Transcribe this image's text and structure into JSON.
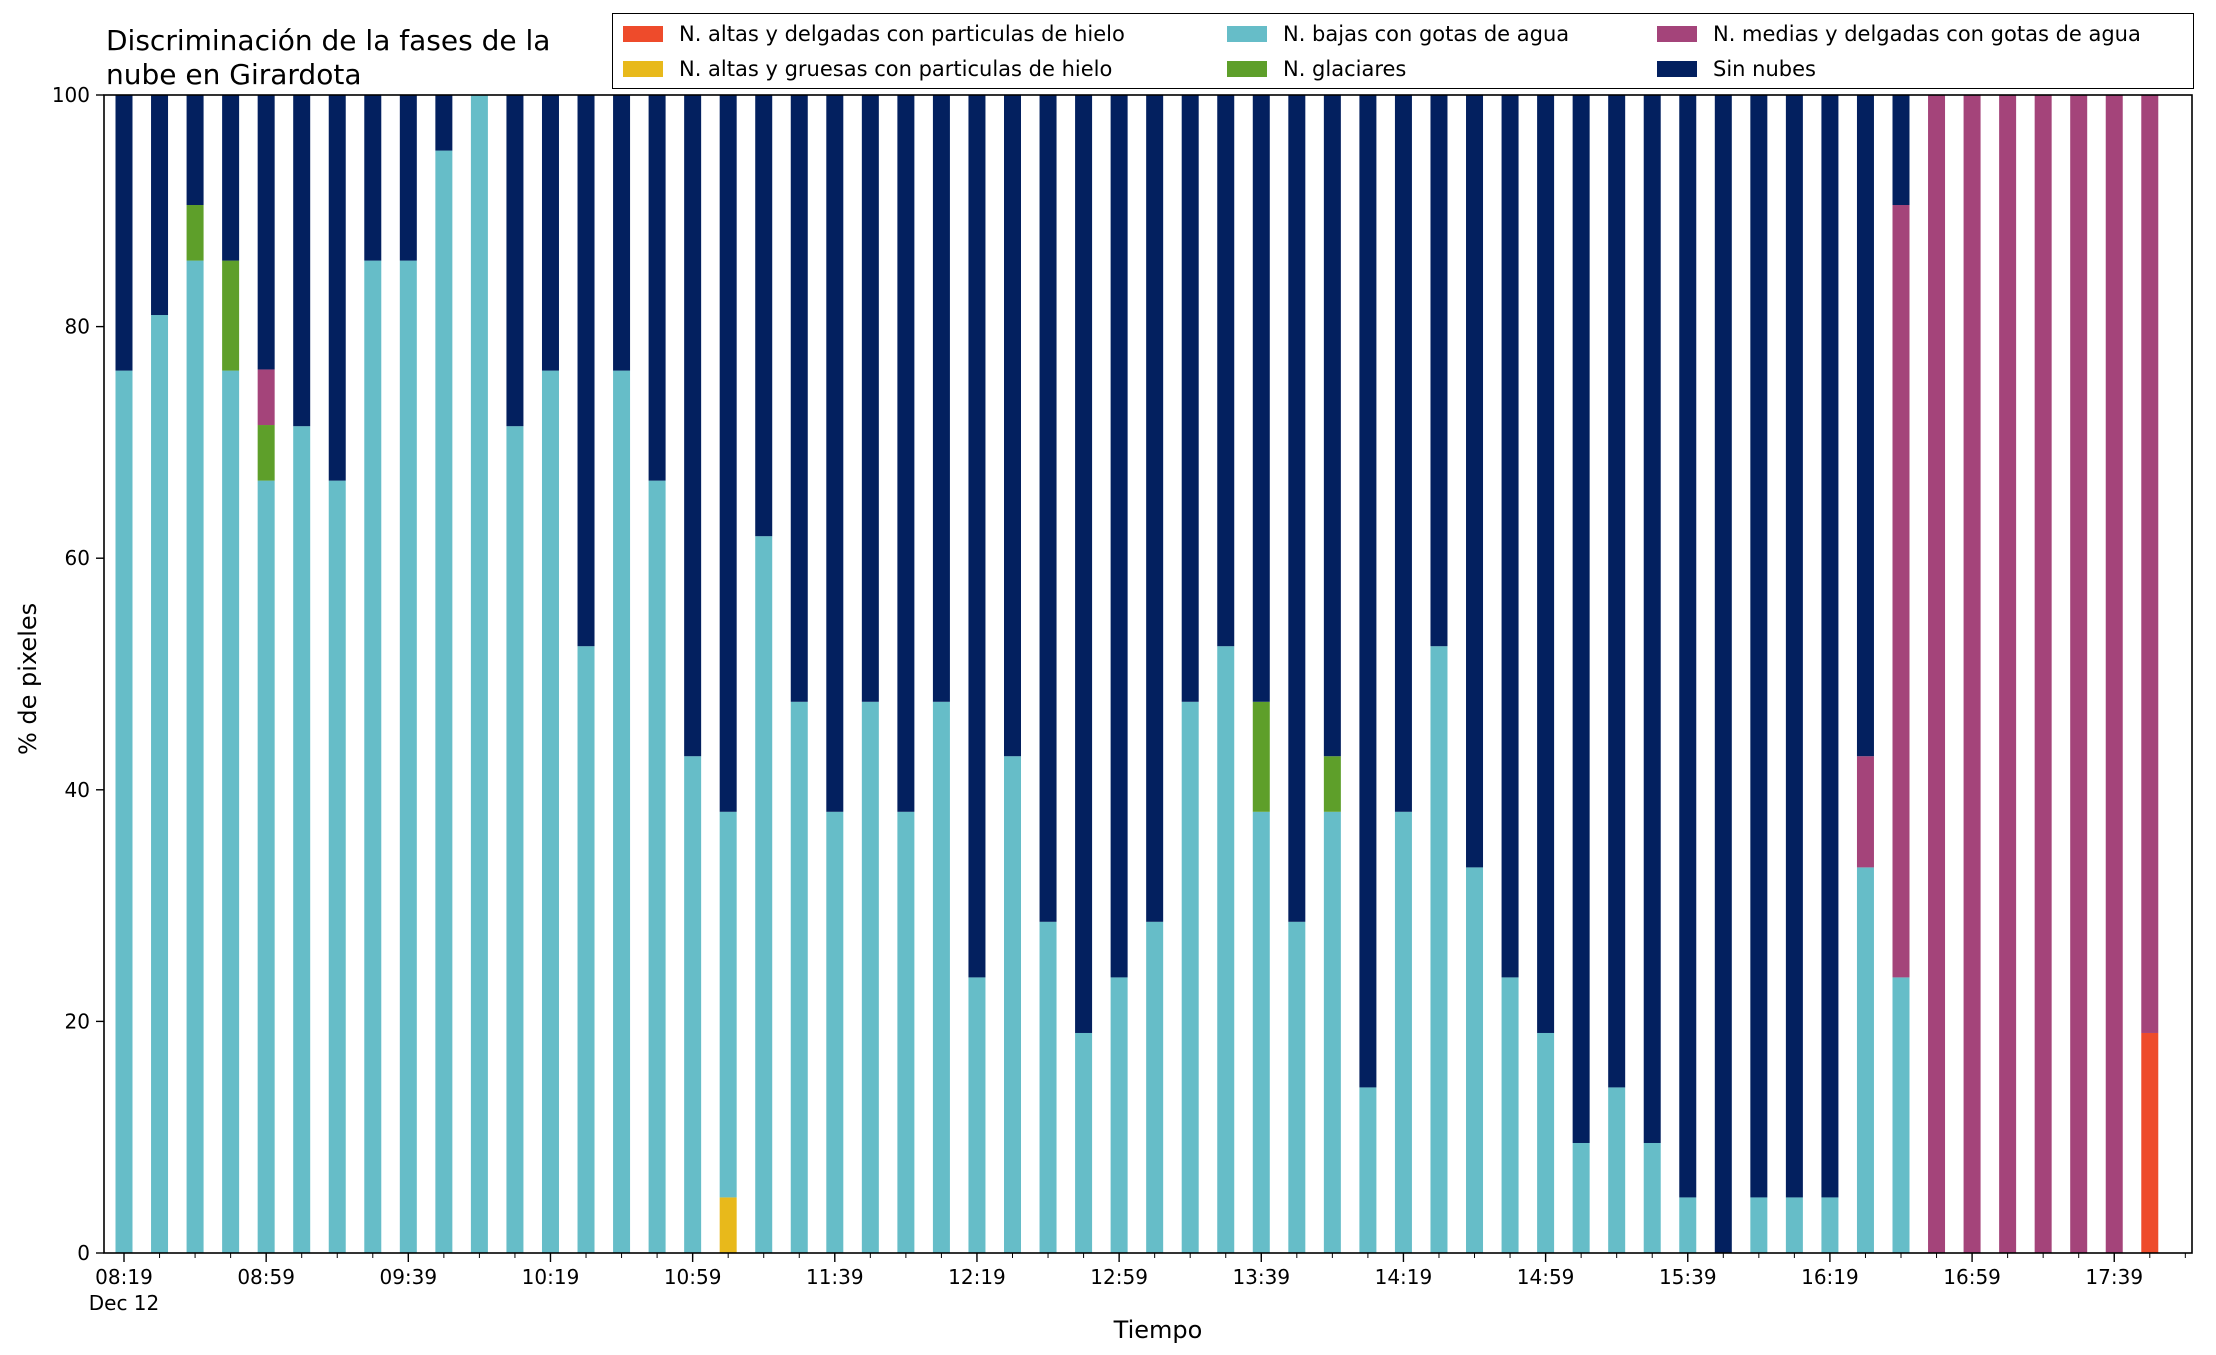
{
  "chart_data": {
    "type": "bar",
    "stacked": true,
    "title_lines": [
      "Discriminación de la fases de la",
      "nube en Girardota"
    ],
    "xlabel": "Tiempo",
    "ylabel": "% de pixeles",
    "ylim": [
      0,
      100
    ],
    "yticks": [
      "0",
      "20",
      "40",
      "60",
      "80",
      "100"
    ],
    "xtick_labels": [
      "08:19",
      "08:59",
      "09:39",
      "10:19",
      "10:59",
      "11:39",
      "12:19",
      "12:59",
      "13:39",
      "14:19",
      "14:59",
      "15:39",
      "16:19",
      "16:59",
      "17:39"
    ],
    "xtick_sub": "Dec 12",
    "grid": false,
    "legend_position": "top-right",
    "n_bars": 58,
    "series": [
      {
        "name": "N. altas y delgadas con particulas de hielo",
        "color": "#EE4B2B",
        "values": [
          0,
          0,
          0,
          0,
          0,
          0,
          0,
          0,
          0,
          0,
          0,
          0,
          0,
          0,
          0,
          0,
          0,
          0,
          0,
          0,
          0,
          0,
          0,
          0,
          0,
          0,
          0,
          0,
          0,
          0,
          0,
          0,
          0,
          0,
          0,
          0,
          0,
          0,
          0,
          0,
          0,
          0,
          0,
          0,
          0,
          0,
          0,
          0,
          0,
          0,
          0,
          0,
          0,
          0,
          0,
          0,
          0,
          19
        ]
      },
      {
        "name": "N. altas y gruesas con particulas de hielo",
        "color": "#E8B91B",
        "values": [
          0,
          0,
          0,
          0,
          0,
          0,
          0,
          0,
          0,
          0,
          0,
          0,
          0,
          0,
          0,
          0,
          0,
          4.8,
          0,
          0,
          0,
          0,
          0,
          0,
          0,
          0,
          0,
          0,
          0,
          0,
          0,
          0,
          0,
          0,
          0,
          0,
          0,
          0,
          0,
          0,
          0,
          0,
          0,
          0,
          0,
          0,
          0,
          0,
          0,
          0,
          0,
          0,
          0,
          0,
          0,
          0,
          0,
          0
        ]
      },
      {
        "name": "N. bajas con gotas de agua",
        "color": "#66BDC8",
        "values": [
          76.2,
          81,
          85.7,
          76.2,
          66.7,
          71.4,
          66.7,
          85.7,
          85.7,
          95.2,
          100,
          71.4,
          76.2,
          52.4,
          76.2,
          66.7,
          42.9,
          33.3,
          61.9,
          47.6,
          38.1,
          47.6,
          38.1,
          47.6,
          23.8,
          42.9,
          28.6,
          19,
          23.8,
          28.6,
          47.6,
          52.4,
          38.1,
          28.6,
          38.1,
          14.3,
          38.1,
          52.4,
          33.3,
          23.8,
          19,
          9.5,
          14.3,
          9.5,
          4.8,
          0,
          4.8,
          4.8,
          4.8,
          33.3,
          23.8,
          0,
          0,
          0,
          0,
          0,
          0,
          0
        ]
      },
      {
        "name": "N. glaciares",
        "color": "#5E9F2A",
        "values": [
          0,
          0,
          4.8,
          9.5,
          4.8,
          0,
          0,
          0,
          0,
          0,
          0,
          0,
          0,
          0,
          0,
          0,
          0,
          0,
          0,
          0,
          0,
          0,
          0,
          0,
          0,
          0,
          0,
          0,
          0,
          0,
          0,
          0,
          9.5,
          0,
          4.8,
          0,
          0,
          0,
          0,
          0,
          0,
          0,
          0,
          0,
          0,
          0,
          0,
          0,
          0,
          0,
          0,
          0,
          0,
          0,
          0,
          0,
          0,
          0
        ]
      },
      {
        "name": "N. medias y delgadas con gotas de agua",
        "color": "#A4447A",
        "values": [
          0,
          0,
          0,
          0,
          4.8,
          0,
          0,
          0,
          0,
          0,
          0,
          0,
          0,
          0,
          0,
          0,
          0,
          0,
          0,
          0,
          0,
          0,
          0,
          0,
          0,
          0,
          0,
          0,
          0,
          0,
          0,
          0,
          0,
          0,
          0,
          0,
          0,
          0,
          0,
          0,
          0,
          0,
          0,
          0,
          0,
          0,
          0,
          0,
          0,
          9.6,
          66.7,
          100,
          100,
          100,
          100,
          100,
          100,
          81
        ]
      },
      {
        "name": "Sin nubes",
        "color": "#03205F",
        "values": [
          23.8,
          19,
          9.5,
          14.3,
          23.7,
          28.6,
          33.3,
          14.3,
          14.3,
          4.8,
          0,
          28.6,
          23.8,
          47.6,
          23.8,
          33.3,
          57.1,
          61.9,
          38.1,
          52.4,
          61.9,
          52.4,
          61.9,
          52.4,
          76.2,
          57.1,
          71.4,
          81,
          76.2,
          71.4,
          52.4,
          47.6,
          52.4,
          71.4,
          57.1,
          85.7,
          61.9,
          47.6,
          66.7,
          76.2,
          81,
          90.5,
          85.7,
          90.5,
          95.2,
          100,
          95.2,
          95.2,
          95.2,
          57.1,
          9.5,
          0,
          0,
          0,
          0,
          0,
          0,
          0
        ]
      }
    ]
  }
}
